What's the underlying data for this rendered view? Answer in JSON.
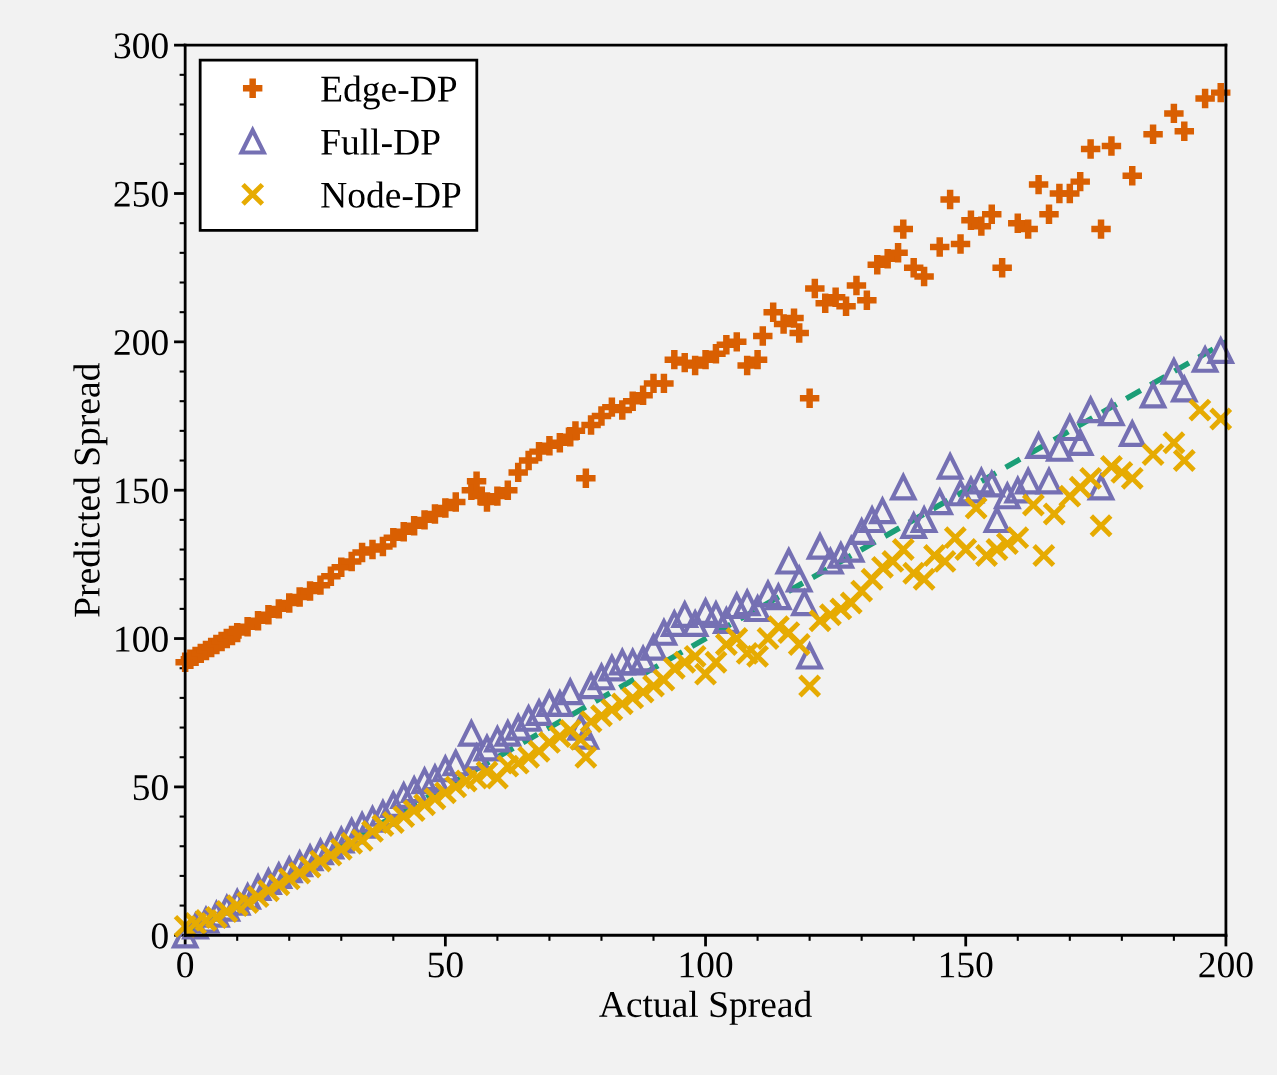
{
  "chart_data": {
    "type": "scatter",
    "xlabel": "Actual Spread",
    "ylabel": "Predicted Spread",
    "xlim": [
      0,
      200
    ],
    "ylim": [
      0,
      300
    ],
    "xticks": [
      0,
      50,
      100,
      150,
      200
    ],
    "yticks": [
      0,
      50,
      100,
      150,
      200,
      250,
      300
    ],
    "grid": false,
    "legend": "top left",
    "series": [
      {
        "name": "Edge-DP",
        "color": "#d95f02",
        "marker": "cross",
        "x": [
          0,
          1,
          2,
          3,
          4,
          5,
          6,
          7,
          8,
          9,
          10,
          12,
          14,
          16,
          18,
          20,
          22,
          24,
          26,
          28,
          30,
          32,
          34,
          36,
          38,
          40,
          42,
          44,
          46,
          48,
          50,
          52,
          55,
          56,
          57,
          58,
          60,
          62,
          64,
          66,
          68,
          70,
          72,
          74,
          75,
          77,
          78,
          80,
          82,
          84,
          86,
          88,
          90,
          92,
          94,
          96,
          98,
          100,
          102,
          104,
          106,
          108,
          110,
          111,
          113,
          115,
          117,
          118,
          120,
          121,
          123,
          125,
          127,
          129,
          131,
          133,
          135,
          137,
          138,
          140,
          142,
          145,
          147,
          149,
          151,
          153,
          155,
          157,
          160,
          162,
          164,
          166,
          168,
          170,
          172,
          174,
          176,
          178,
          182,
          186,
          190,
          192,
          196,
          199
        ],
        "values": [
          92,
          93,
          94,
          95,
          96,
          97,
          98,
          99,
          100,
          101,
          102,
          104,
          106,
          108,
          110,
          112,
          114,
          116,
          118,
          121,
          124,
          126,
          129,
          130,
          131,
          134,
          136,
          138,
          140,
          142,
          144,
          146,
          150,
          153,
          148,
          146,
          148,
          150,
          156,
          160,
          163,
          165,
          166,
          168,
          170,
          154,
          172,
          175,
          178,
          177,
          180,
          182,
          186,
          186,
          194,
          193,
          192,
          194,
          196,
          199,
          200,
          192,
          194,
          202,
          210,
          206,
          208,
          203,
          181,
          218,
          213,
          215,
          212,
          219,
          214,
          226,
          228,
          230,
          238,
          225,
          222,
          232,
          248,
          233,
          241,
          239,
          243,
          225,
          240,
          238,
          253,
          243,
          250,
          250,
          254,
          265,
          238,
          266,
          256,
          270,
          277,
          271,
          282,
          284
        ]
      },
      {
        "name": "Full-DP",
        "color": "#7570b3",
        "marker": "triangle",
        "x": [
          0,
          2,
          4,
          6,
          8,
          10,
          12,
          14,
          16,
          18,
          20,
          22,
          24,
          26,
          28,
          30,
          32,
          34,
          36,
          38,
          40,
          42,
          44,
          46,
          48,
          50,
          52,
          55,
          56,
          58,
          60,
          62,
          64,
          66,
          68,
          70,
          72,
          74,
          76,
          77,
          78,
          80,
          82,
          84,
          86,
          88,
          90,
          92,
          94,
          96,
          98,
          100,
          102,
          104,
          106,
          108,
          110,
          112,
          114,
          116,
          118,
          119,
          120,
          122,
          124,
          126,
          128,
          130,
          132,
          134,
          138,
          140,
          142,
          145,
          147,
          149,
          151,
          153,
          155,
          156,
          158,
          160,
          162,
          164,
          166,
          168,
          170,
          172,
          174,
          176,
          178,
          182,
          186,
          190,
          192,
          196,
          199
        ],
        "values": [
          0,
          3,
          5,
          7,
          9,
          11,
          13,
          16,
          18,
          20,
          22,
          24,
          26,
          28,
          30,
          32,
          35,
          37,
          39,
          41,
          44,
          47,
          49,
          52,
          53,
          56,
          58,
          68,
          60,
          63,
          66,
          68,
          70,
          73,
          75,
          78,
          78,
          82,
          70,
          67,
          84,
          87,
          90,
          92,
          92,
          93,
          97,
          102,
          105,
          108,
          105,
          109,
          108,
          106,
          111,
          112,
          110,
          115,
          114,
          126,
          120,
          112,
          94,
          131,
          126,
          128,
          130,
          136,
          140,
          143,
          151,
          138,
          140,
          146,
          158,
          149,
          150,
          153,
          152,
          140,
          148,
          150,
          153,
          165,
          153,
          164,
          171,
          166,
          177,
          151,
          176,
          169,
          182,
          190,
          184,
          194,
          197
        ]
      },
      {
        "name": "Node-DP",
        "color": "#e6ab02",
        "marker": "x",
        "x": [
          0,
          2,
          4,
          6,
          8,
          10,
          12,
          14,
          16,
          18,
          20,
          22,
          24,
          26,
          28,
          30,
          32,
          34,
          36,
          38,
          40,
          42,
          44,
          46,
          48,
          50,
          52,
          54,
          56,
          58,
          60,
          62,
          64,
          66,
          68,
          70,
          72,
          74,
          76,
          77,
          78,
          80,
          82,
          84,
          86,
          88,
          90,
          92,
          94,
          96,
          98,
          100,
          102,
          104,
          106,
          108,
          110,
          112,
          114,
          116,
          118,
          120,
          122,
          124,
          126,
          128,
          130,
          132,
          134,
          136,
          138,
          140,
          142,
          144,
          146,
          148,
          150,
          152,
          154,
          156,
          158,
          160,
          163,
          165,
          167,
          170,
          172,
          174,
          176,
          178,
          180,
          182,
          186,
          190,
          192,
          195,
          199
        ],
        "values": [
          3,
          4,
          5,
          6,
          8,
          10,
          11,
          13,
          15,
          17,
          19,
          21,
          23,
          25,
          27,
          29,
          31,
          32,
          35,
          37,
          38,
          40,
          42,
          44,
          46,
          48,
          50,
          52,
          53,
          55,
          53,
          57,
          58,
          60,
          62,
          65,
          67,
          69,
          66,
          60,
          72,
          74,
          76,
          78,
          80,
          82,
          84,
          86,
          90,
          92,
          94,
          88,
          92,
          98,
          100,
          95,
          94,
          100,
          104,
          102,
          98,
          84,
          106,
          108,
          110,
          112,
          116,
          120,
          124,
          126,
          130,
          122,
          120,
          128,
          126,
          134,
          130,
          144,
          128,
          130,
          132,
          134,
          145,
          128,
          142,
          148,
          151,
          154,
          138,
          158,
          156,
          154,
          162,
          166,
          160,
          177,
          174
        ]
      },
      {
        "type": "line",
        "color": "#1b9e77",
        "line_style": "dashed",
        "marker": "none",
        "x": [
          0,
          200
        ],
        "values": [
          0,
          200
        ]
      }
    ]
  }
}
